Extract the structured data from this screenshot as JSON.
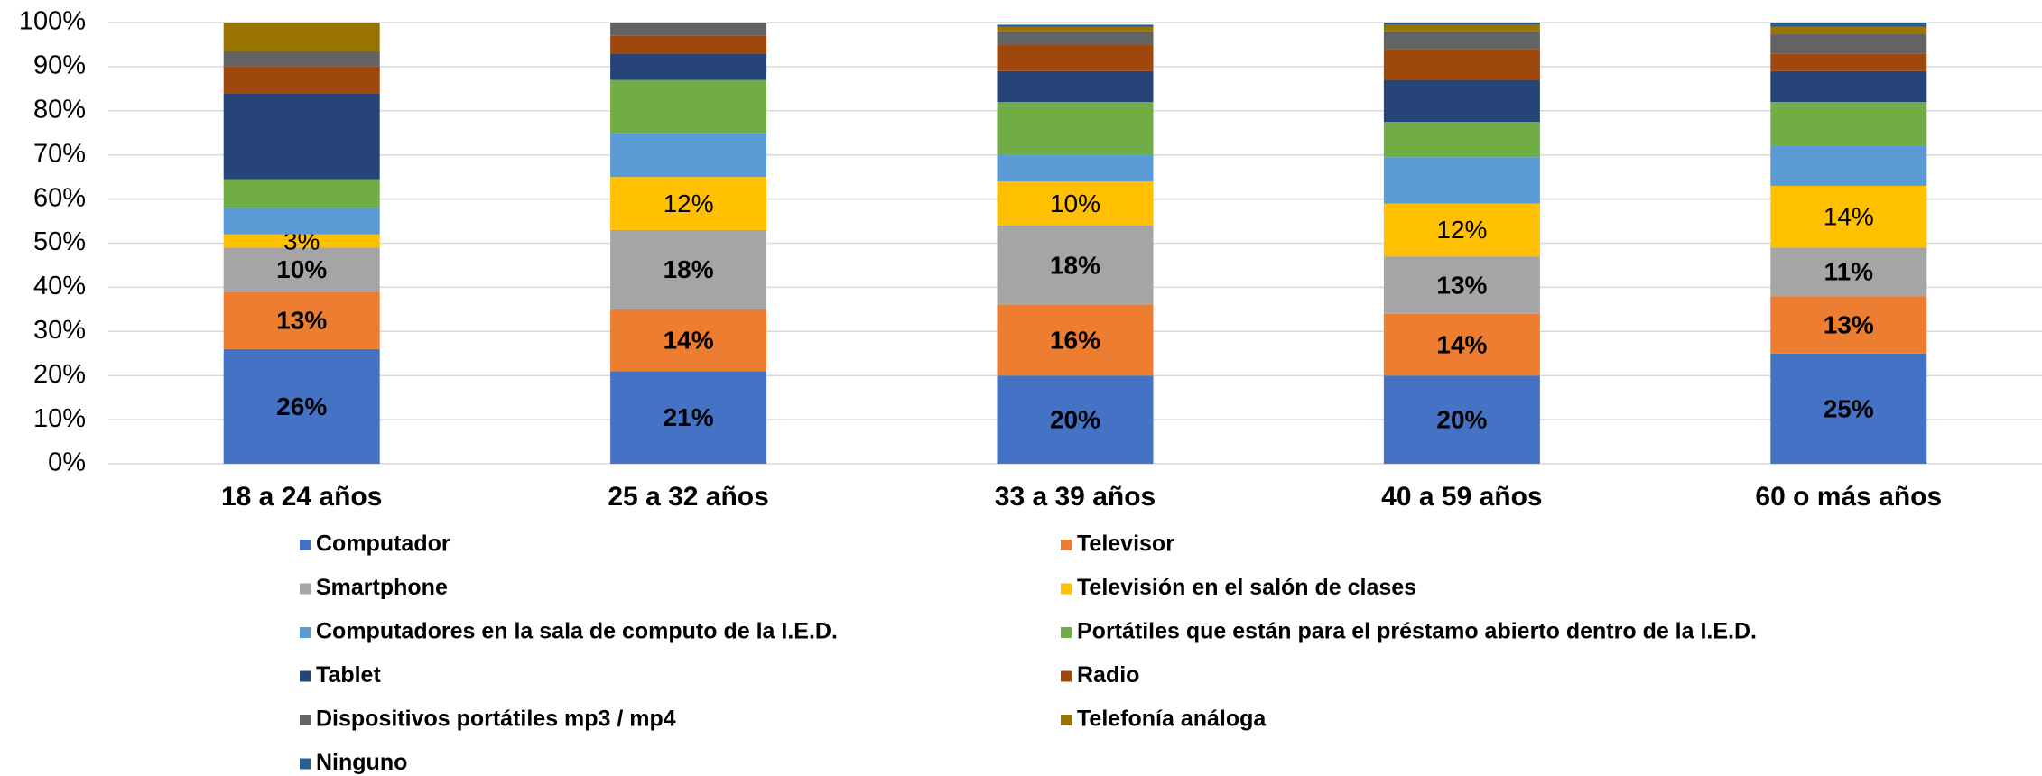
{
  "chart_data": {
    "type": "stacked_bar",
    "categories": [
      "18 a 24 años",
      "25 a 32 años",
      "33 a 39 años",
      "40 a 59 años",
      "60 o más años"
    ],
    "series": [
      {
        "name": "Computador",
        "color": "#4472c4",
        "values": [
          26,
          21,
          20,
          20,
          25
        ],
        "value_labels": [
          "26%",
          "21%",
          "20%",
          "20%",
          "25%"
        ]
      },
      {
        "name": "Televisor",
        "color": "#ed7d31",
        "values": [
          13,
          14,
          16,
          14,
          13
        ],
        "value_labels": [
          "13%",
          "14%",
          "16%",
          "14%",
          "13%"
        ]
      },
      {
        "name": "Smartphone",
        "color": "#a5a5a5",
        "values": [
          10,
          18,
          18,
          13,
          11
        ],
        "value_labels": [
          "10%",
          "18%",
          "18%",
          "13%",
          "11%"
        ]
      },
      {
        "name": "Televisión en el salón de clases",
        "color": "#ffc000",
        "values": [
          3,
          12,
          10,
          12,
          14
        ],
        "value_labels": [
          "3%",
          "12%",
          "10%",
          "12%",
          "14%"
        ]
      },
      {
        "name": "Computadores en la sala de computo de la I.E.D.",
        "color": "#5b9bd5",
        "values": [
          6,
          10,
          6,
          10.5,
          9
        ]
      },
      {
        "name": "Portátiles que están para el préstamo abierto dentro de la I.E.D.",
        "color": "#70ad47",
        "values": [
          6.5,
          12,
          12,
          8,
          10
        ]
      },
      {
        "name": "Tablet",
        "color": "#264478",
        "values": [
          19.5,
          6,
          7,
          9.5,
          7
        ]
      },
      {
        "name": "Radio",
        "color": "#9e480e",
        "values": [
          6,
          4,
          6,
          7,
          4
        ]
      },
      {
        "name": "Dispositivos portátiles mp3 / mp4",
        "color": "#636363",
        "values": [
          3.5,
          3,
          3,
          4,
          4.5
        ]
      },
      {
        "name": "Telefonía análoga",
        "color": "#997300",
        "values": [
          6.5,
          0,
          1,
          1.5,
          1.5
        ]
      },
      {
        "name": "Ninguno",
        "color": "#255e91",
        "values": [
          0,
          0,
          0.5,
          0.5,
          1
        ]
      }
    ],
    "ylim": [
      0,
      100
    ],
    "yticks": [
      {
        "value": 0,
        "label": "0%"
      },
      {
        "value": 10,
        "label": "10%"
      },
      {
        "value": 20,
        "label": "20%"
      },
      {
        "value": 30,
        "label": "30%"
      },
      {
        "value": 40,
        "label": "40%"
      },
      {
        "value": 50,
        "label": "50%"
      },
      {
        "value": 60,
        "label": "60%"
      },
      {
        "value": 70,
        "label": "70%"
      },
      {
        "value": 80,
        "label": "80%"
      },
      {
        "value": 90,
        "label": "90%"
      },
      {
        "value": 100,
        "label": "100%"
      }
    ],
    "grid": true,
    "legend": "bottom"
  }
}
